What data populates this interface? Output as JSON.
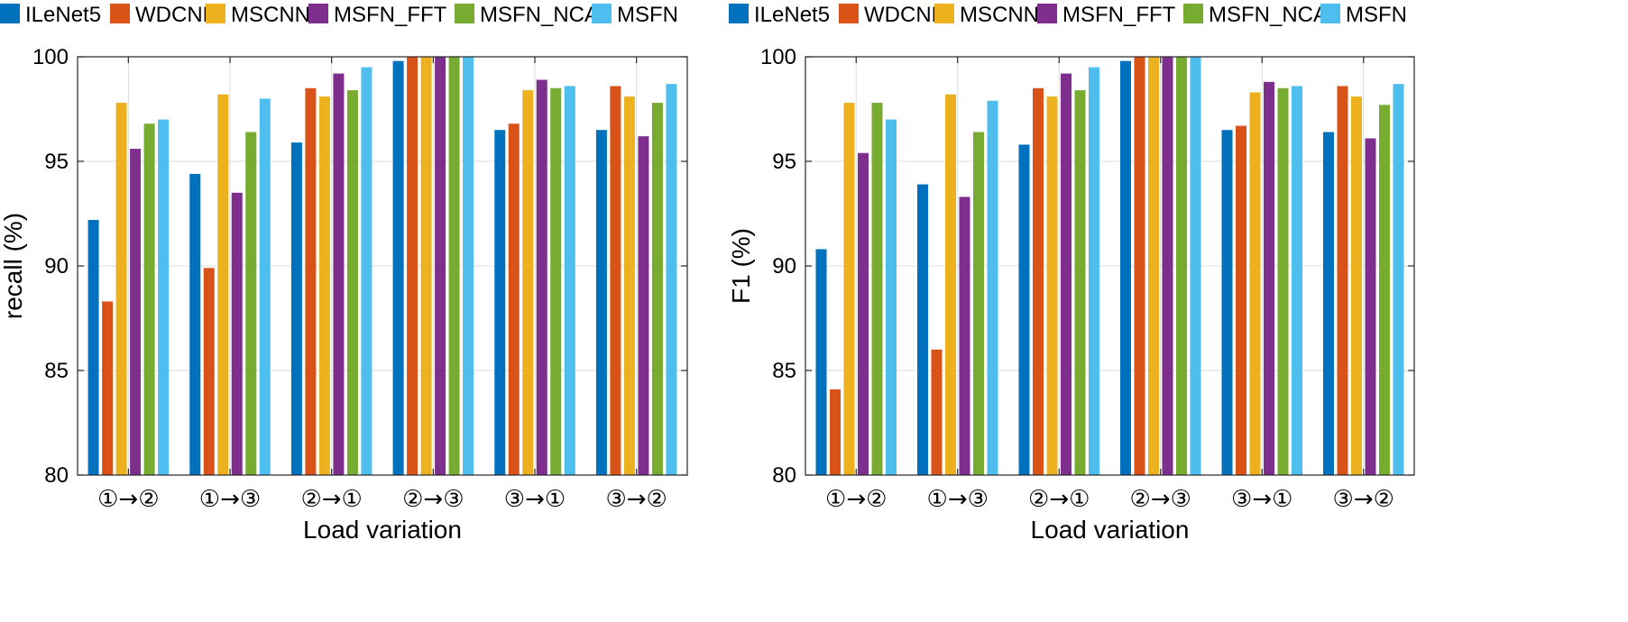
{
  "chart_data": [
    {
      "type": "bar",
      "title": "",
      "xlabel": "Load variation",
      "ylabel": "recall (%)",
      "ylim": [
        80,
        100
      ],
      "yticks": [
        80,
        85,
        90,
        95,
        100
      ],
      "grid": true,
      "legend": "top",
      "categories": [
        "①→②",
        "①→③",
        "②→①",
        "②→③",
        "③→①",
        "③→②"
      ],
      "series": [
        {
          "name": "ILeNet5",
          "color": "#0072BD",
          "values": [
            92.2,
            94.4,
            95.9,
            99.8,
            96.5,
            96.5
          ]
        },
        {
          "name": "WDCNN",
          "color": "#D95319",
          "values": [
            88.3,
            89.9,
            98.5,
            100,
            96.8,
            98.6
          ]
        },
        {
          "name": "MSCNN",
          "color": "#EDB120",
          "values": [
            97.8,
            98.2,
            98.1,
            100,
            98.4,
            98.1
          ]
        },
        {
          "name": "MSFN_FFT",
          "color": "#7E2F8E",
          "values": [
            95.6,
            93.5,
            99.2,
            100,
            98.9,
            96.2
          ]
        },
        {
          "name": "MSFN_NCA",
          "color": "#77AC30",
          "values": [
            96.8,
            96.4,
            98.4,
            100,
            98.5,
            97.8
          ]
        },
        {
          "name": "MSFN",
          "color": "#4DBEEE",
          "values": [
            97.0,
            98.0,
            99.5,
            100,
            98.6,
            98.7
          ]
        }
      ]
    },
    {
      "type": "bar",
      "title": "",
      "xlabel": "Load variation",
      "ylabel": "F1 (%)",
      "ylim": [
        80,
        100
      ],
      "yticks": [
        80,
        85,
        90,
        95,
        100
      ],
      "grid": true,
      "legend": "top",
      "categories": [
        "①→②",
        "①→③",
        "②→①",
        "②→③",
        "③→①",
        "③→②"
      ],
      "series": [
        {
          "name": "ILeNet5",
          "color": "#0072BD",
          "values": [
            90.8,
            93.9,
            95.8,
            99.8,
            96.5,
            96.4
          ]
        },
        {
          "name": "WDCNN",
          "color": "#D95319",
          "values": [
            84.1,
            86.0,
            98.5,
            100,
            96.7,
            98.6
          ]
        },
        {
          "name": "MSCNN",
          "color": "#EDB120",
          "values": [
            97.8,
            98.2,
            98.1,
            100,
            98.3,
            98.1
          ]
        },
        {
          "name": "MSFN_FFT",
          "color": "#7E2F8E",
          "values": [
            95.4,
            93.3,
            99.2,
            100,
            98.8,
            96.1
          ]
        },
        {
          "name": "MSFN_NCA",
          "color": "#77AC30",
          "values": [
            97.8,
            96.4,
            98.4,
            100,
            98.5,
            97.7
          ]
        },
        {
          "name": "MSFN",
          "color": "#4DBEEE",
          "values": [
            97.0,
            97.9,
            99.5,
            100,
            98.6,
            98.7
          ]
        }
      ]
    }
  ]
}
